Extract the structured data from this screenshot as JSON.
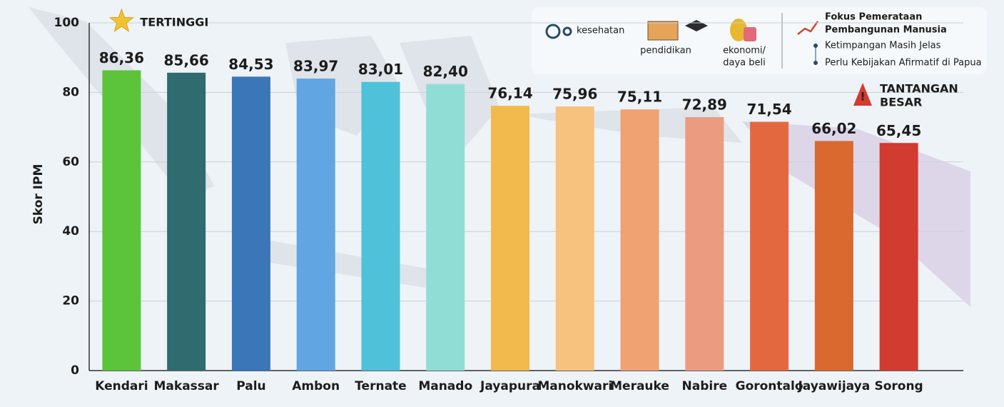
{
  "chart_data": {
    "type": "bar",
    "y_label": "Skor IPM",
    "categories": [
      "Kendari",
      "Makassar",
      "Palu",
      "Ambon",
      "Ternate",
      "Manado",
      "Jayapura",
      "Manokwari",
      "Merauke",
      "Nabire",
      "Gorontalo",
      "Jayawijaya",
      "Sorong"
    ],
    "values": [
      86.36,
      85.66,
      84.53,
      83.97,
      83.01,
      82.4,
      76.14,
      75.96,
      75.11,
      72.89,
      71.54,
      66.02,
      65.45
    ],
    "value_labels": [
      "86,36",
      "85,66",
      "84,53",
      "83,97",
      "83,01",
      "82,40",
      "76,14",
      "75,96",
      "75,11",
      "72,89",
      "71,54",
      "66,02",
      "65,45"
    ],
    "colors": [
      "#5cc43a",
      "#2f6b6f",
      "#3a76b8",
      "#61a5e3",
      "#4fc1d8",
      "#90ddd6",
      "#f2b94c",
      "#f6c27e",
      "#f0a273",
      "#eb9b80",
      "#e4683f",
      "#d9692f",
      "#d23b30"
    ],
    "ylim": [
      0,
      100
    ],
    "yticks": [
      0,
      20,
      40,
      60,
      80,
      100
    ],
    "grid": true,
    "top_annotation": "TERTINGGI",
    "bottom_annotation": [
      "TANTANGAN",
      "BESAR"
    ],
    "info_panel": {
      "health": "kesehatan",
      "education": "pendidikan",
      "economy": [
        "ekonomi/",
        "daya beli"
      ],
      "focus_title": [
        "Fokus Pemerataan",
        "Pembangunan Manusia"
      ],
      "points": [
        "Ketimpangan Masih Jelas",
        "Perlu Kebijakan Afirmatif di Papua"
      ]
    }
  }
}
